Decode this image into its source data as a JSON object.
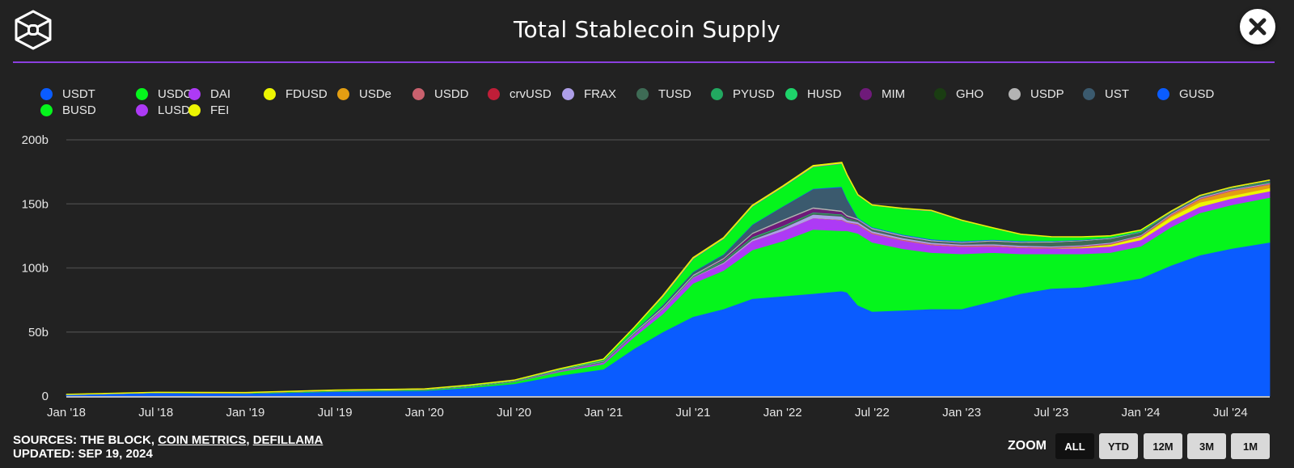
{
  "header": {
    "title": "Total Stablecoin Supply",
    "close_label": "Close",
    "logo_icon": "cube-logo-icon"
  },
  "colors": {
    "background": "#222222",
    "accent_rule": "#8b3fe0",
    "grid": "#444444"
  },
  "legend": [
    {
      "name": "USDT",
      "color": "#0a5cff"
    },
    {
      "name": "USDC",
      "color": "#05f51c"
    },
    {
      "name": "DAI",
      "color": "#ad3af5"
    },
    {
      "name": "FDUSD",
      "color": "#ecf502"
    },
    {
      "name": "USDe",
      "color": "#e39e12"
    },
    {
      "name": "USDD",
      "color": "#c9616e"
    },
    {
      "name": "crvUSD",
      "color": "#bf1e38"
    },
    {
      "name": "FRAX",
      "color": "#ad9ee8"
    },
    {
      "name": "TUSD",
      "color": "#3e6b55"
    },
    {
      "name": "PYUSD",
      "color": "#22a860"
    },
    {
      "name": "HUSD",
      "color": "#1ed36a"
    },
    {
      "name": "MIM",
      "color": "#6f1a7a"
    },
    {
      "name": "GHO",
      "color": "#1a3d12"
    },
    {
      "name": "USDP",
      "color": "#b3b3b3"
    },
    {
      "name": "UST",
      "color": "#3b5a6e"
    },
    {
      "name": "GUSD",
      "color": "#0a5cff"
    },
    {
      "name": "BUSD",
      "color": "#05f51c"
    },
    {
      "name": "LUSD",
      "color": "#ad3af5"
    },
    {
      "name": "FEI",
      "color": "#ecf502"
    }
  ],
  "footer": {
    "sources_prefix": "SOURCES: THE BLOCK, ",
    "source_link_1": "COIN METRICS",
    "separator": ", ",
    "source_link_2": "DEFILLAMA",
    "updated": "UPDATED: SEP 19, 2024"
  },
  "zoom": {
    "label": "ZOOM",
    "buttons": [
      "ALL",
      "YTD",
      "12M",
      "3M",
      "1M"
    ],
    "active": "ALL"
  },
  "chart_data": {
    "type": "area",
    "stacked": true,
    "title": "Total Stablecoin Supply",
    "xlabel": "",
    "ylabel": "",
    "ylim": [
      0,
      200
    ],
    "y_unit": "b",
    "yticks": [
      "0",
      "50b",
      "100b",
      "150b",
      "200b"
    ],
    "ytick_values": [
      0,
      50,
      100,
      150,
      200
    ],
    "xticks": [
      "Jan '18",
      "Jul '18",
      "Jan '19",
      "Jul '19",
      "Jan '20",
      "Jul '20",
      "Jan '21",
      "Jul '21",
      "Jan '22",
      "Jul '22",
      "Jan '23",
      "Jul '23",
      "Jan '24",
      "Jul '24"
    ],
    "xtick_values": [
      2018.0,
      2018.5,
      2019.0,
      2019.5,
      2020.0,
      2020.5,
      2021.0,
      2021.5,
      2022.0,
      2022.5,
      2023.0,
      2023.5,
      2024.0,
      2024.5
    ],
    "xlim": [
      2018.0,
      2024.72
    ],
    "grid": true,
    "legend_position": "top",
    "x": [
      2018.0,
      2018.5,
      2019.0,
      2019.5,
      2020.0,
      2020.25,
      2020.5,
      2020.75,
      2021.0,
      2021.17,
      2021.33,
      2021.5,
      2021.67,
      2021.83,
      2022.0,
      2022.17,
      2022.33,
      2022.36,
      2022.42,
      2022.5,
      2022.67,
      2022.83,
      2023.0,
      2023.17,
      2023.33,
      2023.5,
      2023.67,
      2023.83,
      2024.0,
      2024.17,
      2024.33,
      2024.5,
      2024.72
    ],
    "series": [
      {
        "name": "USDT",
        "values": [
          1.2,
          2.5,
          2.0,
          3.5,
          4.3,
          6.5,
          9.5,
          16,
          21,
          37,
          50,
          62,
          68,
          76,
          78,
          80,
          82,
          81,
          71,
          66,
          67,
          68,
          68,
          74,
          80,
          84,
          85,
          88,
          92,
          102,
          110,
          115,
          120
        ]
      },
      {
        "name": "USDC",
        "values": [
          0,
          0.1,
          0.3,
          0.5,
          0.5,
          0.8,
          1.5,
          2.8,
          4,
          9,
          14,
          26,
          30,
          38,
          43,
          50,
          47,
          48,
          56,
          54,
          48,
          44,
          43,
          38,
          31,
          27,
          26,
          24,
          25,
          30,
          33,
          34,
          35
        ]
      },
      {
        "name": "DAI",
        "values": [
          0,
          0,
          0,
          0,
          0.05,
          0.1,
          0.2,
          0.8,
          1.2,
          2,
          3.5,
          4.5,
          5.5,
          7,
          8,
          9,
          8.5,
          6.5,
          6.8,
          6.8,
          6.5,
          6,
          5.7,
          5,
          4.8,
          4.3,
          4.5,
          4.8,
          4.9,
          4.9,
          4.8,
          5,
          5
        ]
      },
      {
        "name": "FDUSD",
        "values": [
          0,
          0,
          0,
          0,
          0,
          0,
          0,
          0,
          0,
          0,
          0,
          0,
          0,
          0,
          0,
          0,
          0,
          0,
          0,
          0,
          0,
          0,
          0,
          0,
          0,
          0.1,
          0.8,
          1.5,
          2.2,
          3,
          3.4,
          2.2,
          2.4
        ]
      },
      {
        "name": "USDe",
        "values": [
          0,
          0,
          0,
          0,
          0,
          0,
          0,
          0,
          0,
          0,
          0,
          0,
          0,
          0,
          0,
          0,
          0,
          0,
          0,
          0,
          0,
          0,
          0,
          0,
          0,
          0,
          0,
          0,
          0.1,
          1.2,
          2.3,
          3.6,
          2.6
        ]
      },
      {
        "name": "USDD",
        "values": [
          0,
          0,
          0,
          0,
          0,
          0,
          0,
          0,
          0,
          0,
          0,
          0,
          0,
          0,
          0,
          0,
          0.2,
          0.3,
          0.7,
          0.7,
          0.7,
          0.7,
          0.7,
          0.7,
          0.7,
          0.7,
          0.7,
          0.7,
          0.7,
          0.7,
          0.7,
          0.7,
          0.7
        ]
      },
      {
        "name": "crvUSD",
        "values": [
          0,
          0,
          0,
          0,
          0,
          0,
          0,
          0,
          0,
          0,
          0,
          0,
          0,
          0,
          0,
          0,
          0,
          0,
          0,
          0,
          0,
          0,
          0,
          0,
          0.05,
          0.1,
          0.15,
          0.2,
          0.2,
          0.15,
          0.15,
          0.15,
          0.12
        ]
      },
      {
        "name": "FRAX",
        "values": [
          0,
          0,
          0,
          0,
          0,
          0,
          0,
          0,
          0.1,
          0.15,
          0.3,
          0.3,
          0.8,
          1.3,
          2,
          2.8,
          2.6,
          1.7,
          1.4,
          1.3,
          1.2,
          1.1,
          1,
          1,
          1,
          0.8,
          0.7,
          0.7,
          0.65,
          0.65,
          0.65,
          0.6,
          0.6
        ]
      },
      {
        "name": "TUSD",
        "values": [
          0.02,
          0.15,
          0.2,
          0.2,
          0.15,
          0.2,
          0.3,
          0.4,
          0.5,
          0.5,
          0.3,
          0.5,
          1.2,
          1.3,
          1.3,
          1.3,
          1.3,
          1.2,
          1.1,
          1.1,
          1,
          1,
          1,
          2,
          2.2,
          3,
          3.1,
          2.8,
          1.8,
          0.6,
          0.5,
          0.5,
          0.5
        ]
      },
      {
        "name": "PYUSD",
        "values": [
          0,
          0,
          0,
          0,
          0,
          0,
          0,
          0,
          0,
          0,
          0,
          0,
          0,
          0,
          0,
          0,
          0,
          0,
          0,
          0,
          0,
          0,
          0,
          0,
          0,
          0,
          0.05,
          0.1,
          0.2,
          0.3,
          0.4,
          0.45,
          0.9
        ]
      },
      {
        "name": "HUSD",
        "values": [
          0,
          0,
          0,
          0.05,
          0.1,
          0.15,
          0.2,
          0.25,
          0.3,
          0.4,
          0.5,
          0.5,
          0.5,
          0.5,
          0.5,
          0.4,
          0.3,
          0.2,
          0.1,
          0.1,
          0,
          0,
          0,
          0,
          0,
          0,
          0,
          0,
          0,
          0,
          0,
          0,
          0
        ]
      },
      {
        "name": "MIM",
        "values": [
          0,
          0,
          0,
          0,
          0,
          0,
          0,
          0,
          0,
          0,
          0,
          0.1,
          1,
          2.5,
          4,
          3,
          2,
          1.5,
          0.6,
          0.5,
          0.4,
          0.3,
          0.2,
          0.2,
          0.1,
          0.1,
          0.1,
          0.1,
          0.1,
          0.1,
          0.1,
          0.1,
          0.1
        ]
      },
      {
        "name": "GHO",
        "values": [
          0,
          0,
          0,
          0,
          0,
          0,
          0,
          0,
          0,
          0,
          0,
          0,
          0,
          0,
          0,
          0,
          0,
          0,
          0,
          0,
          0,
          0,
          0,
          0,
          0,
          0.03,
          0.03,
          0.03,
          0.04,
          0.05,
          0.08,
          0.1,
          0.15
        ]
      },
      {
        "name": "USDP",
        "values": [
          0.1,
          0.1,
          0.2,
          0.2,
          0.25,
          0.3,
          0.3,
          0.4,
          0.5,
          0.8,
          0.9,
          0.9,
          0.9,
          0.95,
          1,
          1,
          1,
          1,
          0.9,
          0.9,
          0.8,
          0.8,
          0.8,
          0.8,
          0.8,
          0.6,
          0.6,
          0.5,
          0.4,
          0.3,
          0.2,
          0.2,
          0.2
        ]
      },
      {
        "name": "UST",
        "values": [
          0,
          0,
          0,
          0,
          0,
          0,
          0,
          0,
          0.2,
          0.4,
          1.5,
          2,
          2.5,
          6,
          10,
          14,
          18,
          12,
          0,
          0,
          0,
          0,
          0,
          0,
          0,
          0,
          0,
          0,
          0,
          0,
          0,
          0,
          0
        ]
      },
      {
        "name": "GUSD",
        "values": [
          0,
          0.05,
          0.1,
          0.05,
          0.05,
          0.1,
          0.1,
          0.1,
          0.1,
          0.2,
          0.3,
          0.3,
          0.4,
          0.4,
          0.3,
          0.4,
          0.6,
          0.6,
          0.6,
          0.5,
          0.6,
          0.6,
          0.6,
          0.5,
          0.5,
          0.4,
          0.3,
          0.3,
          0.2,
          0.1,
          0.1,
          0.1,
          0.1
        ]
      },
      {
        "name": "BUSD",
        "values": [
          0,
          0,
          0,
          0.2,
          0.2,
          0.4,
          0.3,
          0.4,
          1,
          3,
          6,
          10,
          12,
          14,
          15,
          17,
          18,
          18,
          17.5,
          17,
          20,
          22,
          16,
          9,
          5,
          3,
          2,
          1.2,
          0.9,
          0.2,
          0.1,
          0.1,
          0.1
        ]
      },
      {
        "name": "LUSD",
        "values": [
          0,
          0,
          0,
          0,
          0,
          0,
          0,
          0,
          0,
          0,
          0.4,
          0.5,
          0.3,
          0.4,
          0.3,
          0.4,
          0.3,
          0.3,
          0.3,
          0.2,
          0.2,
          0.3,
          0.3,
          0.3,
          0.25,
          0.25,
          0.25,
          0.2,
          0.2,
          0.1,
          0.1,
          0.1,
          0.1
        ]
      },
      {
        "name": "FEI",
        "values": [
          0,
          0,
          0,
          0,
          0,
          0,
          0,
          0,
          0,
          0,
          0.6,
          0.5,
          0.5,
          0.5,
          0.5,
          0.6,
          0.6,
          0.5,
          0.2,
          0.1,
          0.1,
          0.1,
          0,
          0,
          0,
          0,
          0,
          0,
          0,
          0,
          0,
          0,
          0
        ]
      }
    ]
  }
}
